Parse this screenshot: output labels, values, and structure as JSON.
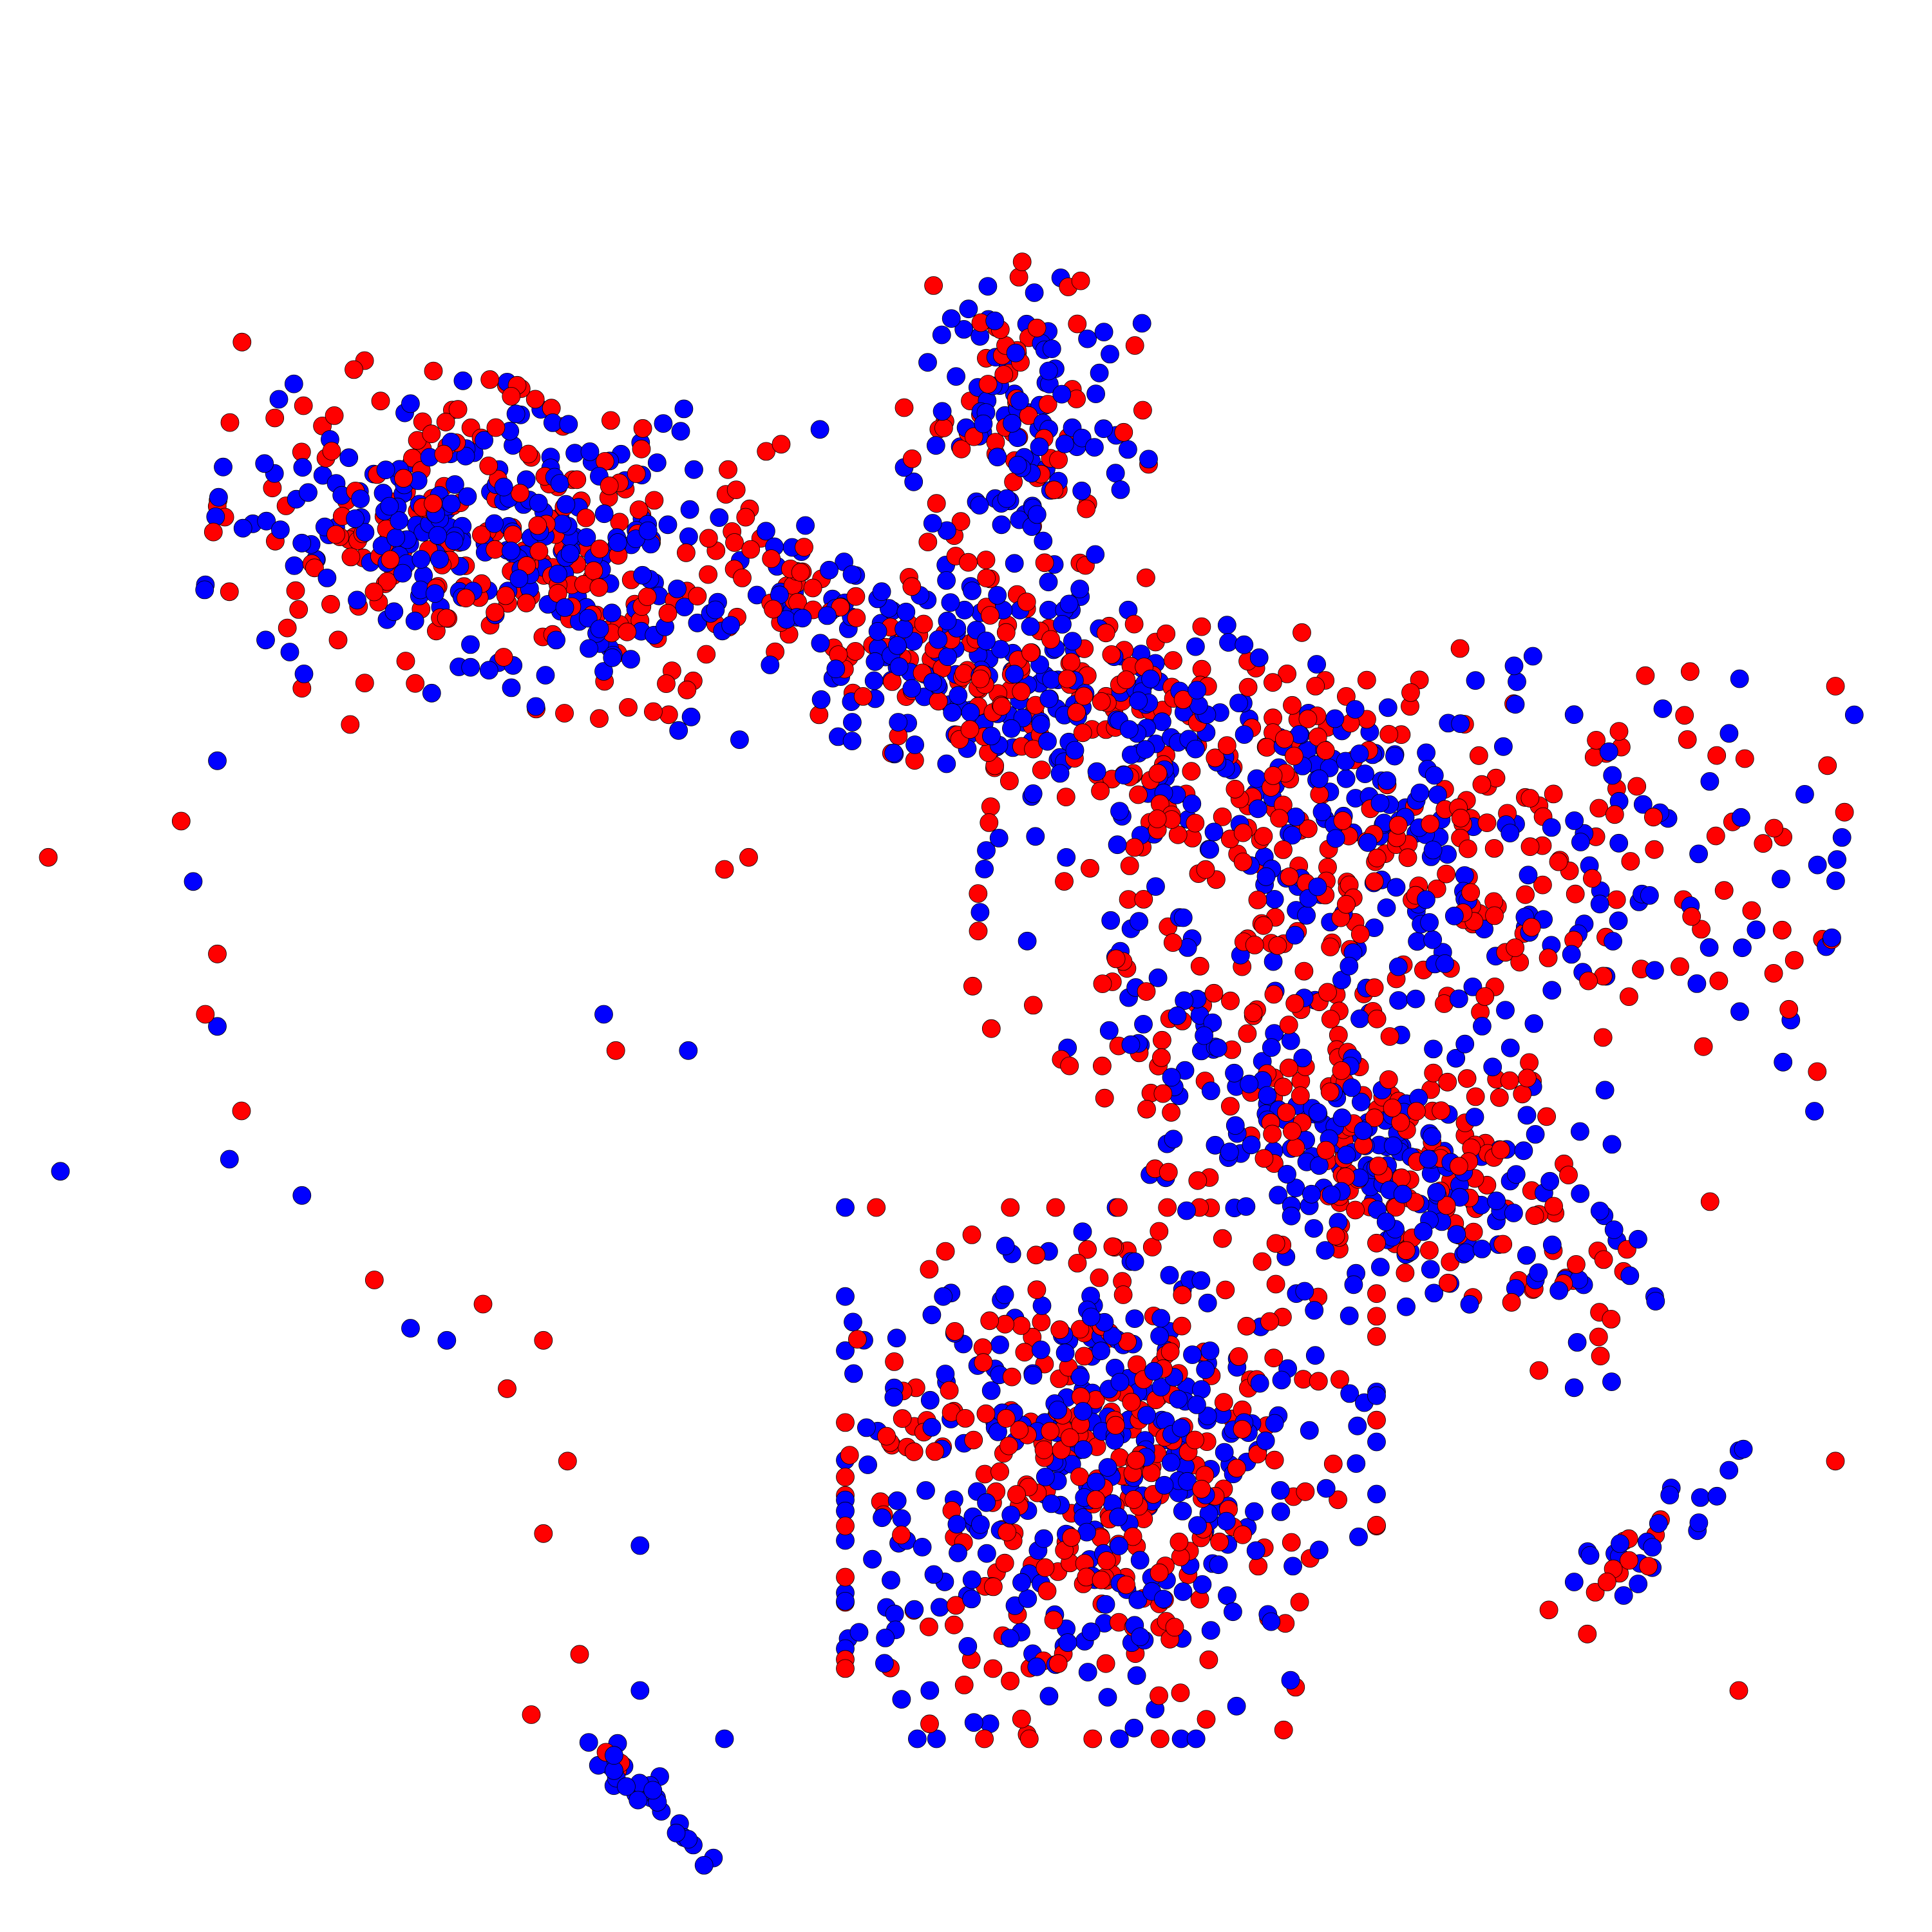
{
  "chart_data": {
    "type": "scatter",
    "title": "",
    "xlabel": "",
    "ylabel": "",
    "axes_visible": false,
    "grid": false,
    "legend": "none",
    "xlim": [
      -40,
      40
    ],
    "ylim": [
      -40,
      40
    ],
    "colors": {
      "series_a": "#ff0000",
      "series_b": "#0000ff",
      "marker_edge": "#000000"
    },
    "clusters": [
      {
        "cx": -19.0,
        "cy": 17.5,
        "sx": 5.5,
        "sy": 3.0,
        "rot": -0.15,
        "red": 230,
        "blue": 240
      },
      {
        "cx": 1.5,
        "cy": 12.0,
        "sx": 7.5,
        "sy": 2.0,
        "rot": -0.3,
        "red": 200,
        "blue": 230
      },
      {
        "cx": 2.5,
        "cy": 22.0,
        "sx": 2.3,
        "sy": 3.3,
        "rot": 0.0,
        "red": 70,
        "blue": 110
      },
      {
        "cx": 18.5,
        "cy": 4.5,
        "sx": 8.0,
        "sy": 4.0,
        "rot": -0.1,
        "red": 260,
        "blue": 230
      },
      {
        "cx": 17.0,
        "cy": -7.5,
        "sx": 6.0,
        "sy": 2.5,
        "rot": -0.5,
        "red": 190,
        "blue": 220
      },
      {
        "cx": 6.0,
        "cy": -21.0,
        "sx": 5.0,
        "sy": 5.0,
        "rot": 0.0,
        "red": 320,
        "blue": 340
      },
      {
        "cx": 28.0,
        "cy": -24.0,
        "sx": 3.0,
        "sy": 0.7,
        "rot": 0.65,
        "red": 12,
        "blue": 22
      },
      {
        "cx": -13.0,
        "cy": -34.5,
        "sx": 1.6,
        "sy": 0.45,
        "rot": -0.75,
        "red": 3,
        "blue": 28
      }
    ],
    "sparse": [
      {
        "x": -30.5,
        "y": 15.5,
        "c": "r"
      },
      {
        "x": -29.0,
        "y": 13.5,
        "c": "b"
      },
      {
        "x": -27.5,
        "y": 11.5,
        "c": "r"
      },
      {
        "x": -31.0,
        "y": 8.5,
        "c": "b"
      },
      {
        "x": -32.5,
        "y": 6.0,
        "c": "r"
      },
      {
        "x": -32.0,
        "y": 3.5,
        "c": "b"
      },
      {
        "x": -31.0,
        "y": 0.5,
        "c": "r"
      },
      {
        "x": -31.0,
        "y": -2.5,
        "c": "b"
      },
      {
        "x": -30.0,
        "y": -6.0,
        "c": "r"
      },
      {
        "x": -27.5,
        "y": -9.5,
        "c": "b"
      },
      {
        "x": -24.5,
        "y": -13.0,
        "c": "r"
      },
      {
        "x": -21.5,
        "y": -15.5,
        "c": "b"
      },
      {
        "x": -19.0,
        "y": -17.5,
        "c": "r"
      },
      {
        "x": -31.5,
        "y": -2.0,
        "c": "r"
      },
      {
        "x": -30.5,
        "y": -8.0,
        "c": "b"
      },
      {
        "x": -38.0,
        "y": 4.5,
        "c": "r"
      },
      {
        "x": -37.5,
        "y": -8.5,
        "c": "b"
      },
      {
        "x": -26.0,
        "y": 13.5,
        "c": "r"
      },
      {
        "x": -28.0,
        "y": 13.0,
        "c": "b"
      },
      {
        "x": -25.5,
        "y": 10.0,
        "c": "r"
      },
      {
        "x": -23.0,
        "y": -15.0,
        "c": "b"
      },
      {
        "x": -10.0,
        "y": 4.0,
        "c": "r"
      },
      {
        "x": -9.0,
        "y": 4.5,
        "c": "r"
      },
      {
        "x": -15.0,
        "y": -2.0,
        "c": "b"
      },
      {
        "x": -14.5,
        "y": -3.5,
        "c": "r"
      },
      {
        "x": -11.5,
        "y": -3.5,
        "c": "b"
      },
      {
        "x": 0.5,
        "y": 3.0,
        "c": "r"
      },
      {
        "x": -16.5,
        "y": -20.5,
        "c": "r"
      },
      {
        "x": -13.5,
        "y": -24.0,
        "c": "b"
      },
      {
        "x": -17.5,
        "y": -23.5,
        "c": "r"
      },
      {
        "x": -16.0,
        "y": -28.5,
        "c": "r"
      },
      {
        "x": -18.0,
        "y": -31.0,
        "c": "r"
      },
      {
        "x": -10.0,
        "y": -32.0,
        "c": "b"
      },
      {
        "x": -13.5,
        "y": -30.0,
        "c": "b"
      },
      {
        "x": -20.0,
        "y": -14.0,
        "c": "r"
      },
      {
        "x": -17.5,
        "y": -15.5,
        "c": "r"
      },
      {
        "x": -1.0,
        "y": -20.0,
        "c": "b"
      },
      {
        "x": 1.5,
        "y": -18.5,
        "c": "b"
      },
      {
        "x": -1.5,
        "y": -30.0,
        "c": "b"
      },
      {
        "x": -21.5,
        "y": 21.5,
        "c": "r"
      },
      {
        "x": 11.5,
        "y": 1.0,
        "c": "r"
      },
      {
        "x": 32.0,
        "y": -30.0,
        "c": "r"
      },
      {
        "x": 36.0,
        "y": -20.5,
        "c": "r"
      }
    ]
  }
}
